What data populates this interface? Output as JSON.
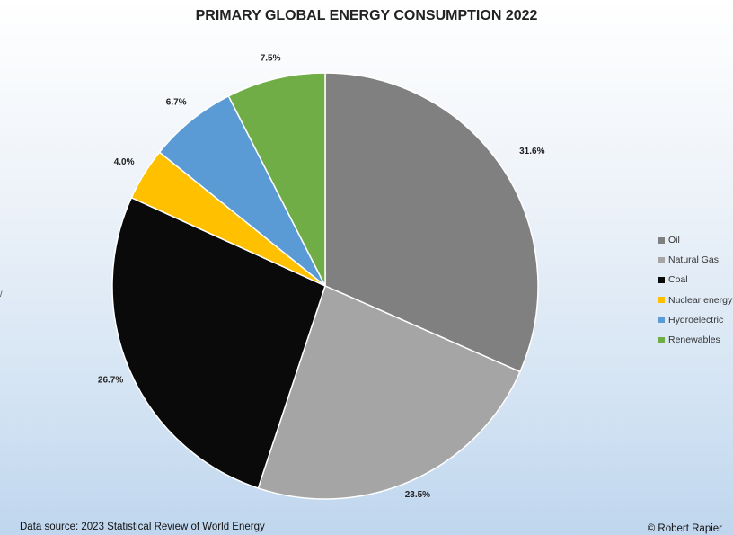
{
  "chart_data": {
    "type": "pie",
    "title": "PRIMARY GLOBAL ENERGY CONSUMPTION 2022",
    "categories": [
      "Oil",
      "Natural Gas",
      "Coal",
      "Nuclear energy",
      "Hydroelectric",
      "Renewables"
    ],
    "values": [
      31.6,
      23.5,
      26.7,
      4.0,
      6.7,
      7.5
    ],
    "labels": [
      "31.6%",
      "23.5%",
      "26.7%",
      "4.0%",
      "6.7%",
      "7.5%"
    ],
    "colors": [
      "#808080",
      "#a5a5a5",
      "#0a0a0a",
      "#ffc000",
      "#5b9bd5",
      "#70ad47"
    ],
    "legend_position": "right"
  },
  "footer": {
    "source": "Data source: 2023 Statistical Review of World Energy",
    "credit": "© Robert Rapier"
  }
}
